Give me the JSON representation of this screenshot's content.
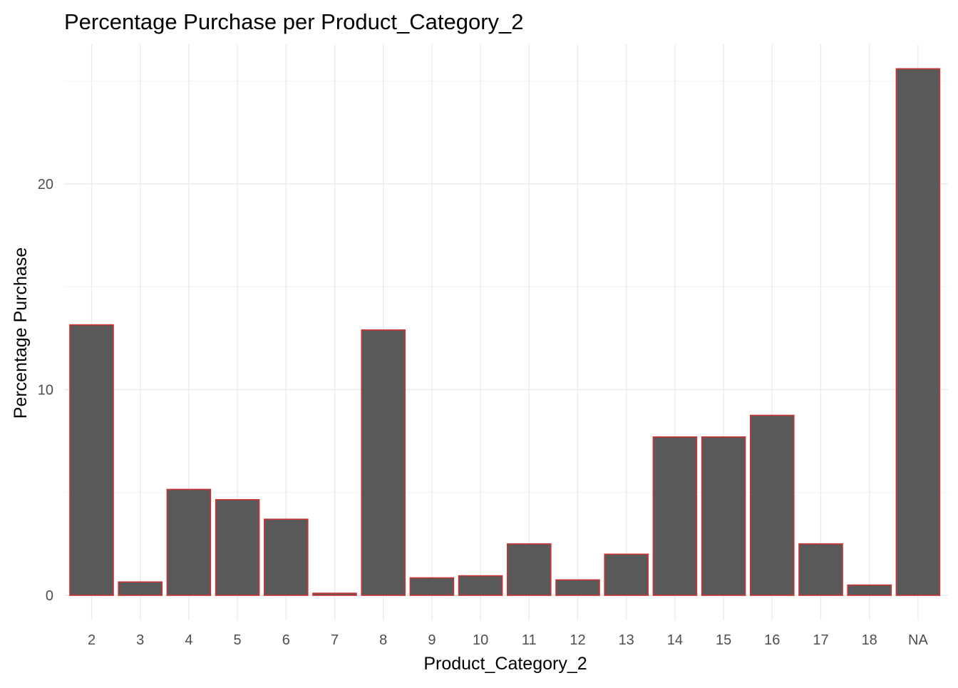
{
  "chart_data": {
    "type": "bar",
    "title": "Percentage Purchase per Product_Category_2",
    "xlabel": "Product_Category_2",
    "ylabel": "Percentage Purchase",
    "categories": [
      "2",
      "3",
      "4",
      "5",
      "6",
      "7",
      "8",
      "9",
      "10",
      "11",
      "12",
      "13",
      "14",
      "15",
      "16",
      "17",
      "18",
      "NA"
    ],
    "values": [
      13.15,
      0.65,
      5.15,
      4.65,
      3.7,
      0.1,
      12.9,
      0.85,
      0.95,
      2.5,
      0.75,
      2.0,
      7.7,
      7.7,
      8.75,
      2.5,
      0.5,
      25.6
    ],
    "ylim": [
      0,
      26.85
    ],
    "yticks": [
      "0",
      "10",
      "20"
    ],
    "grid": true,
    "legend": "none",
    "colors": {
      "bar_fill": "#595959",
      "bar_outline": "#cc3333",
      "grid_major": "#ebebeb",
      "grid_minor": "#f2f2f2",
      "tick_text": "#4d4d4d"
    }
  }
}
